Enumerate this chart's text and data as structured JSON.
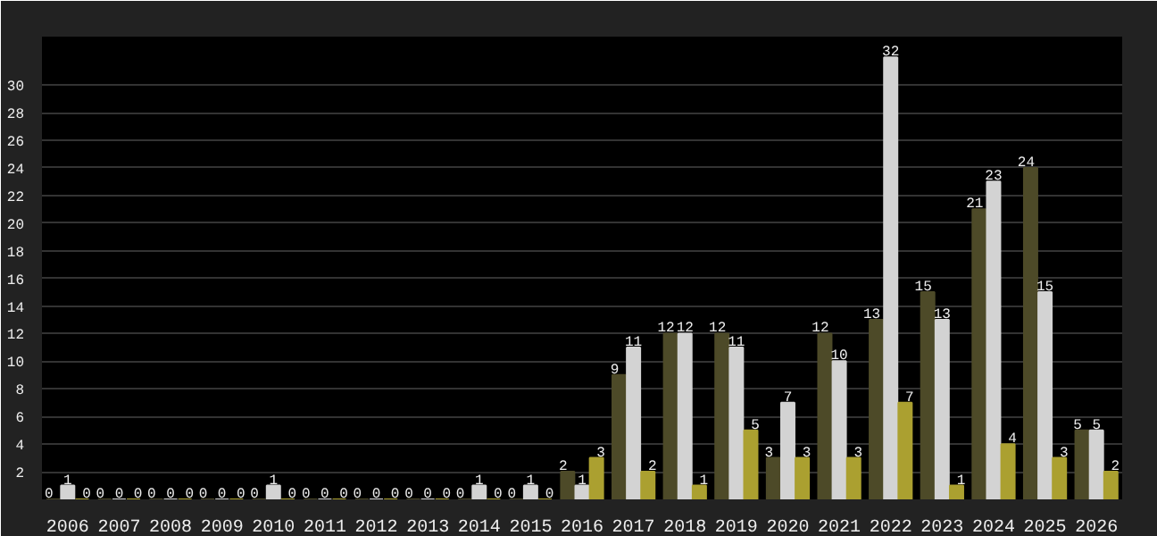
{
  "chart_data": {
    "type": "bar",
    "categories": [
      "2006",
      "2007",
      "2008",
      "2009",
      "2010",
      "2011",
      "2012",
      "2013",
      "2014",
      "2015",
      "2016",
      "2017",
      "2018",
      "2019",
      "2020",
      "2021",
      "2022",
      "2023",
      "2024",
      "2025",
      "2026"
    ],
    "series": [
      {
        "color": "#4d4a28",
        "values": [
          0,
          0,
          0,
          0,
          0,
          0,
          0,
          0,
          0,
          0,
          2,
          9,
          12,
          12,
          3,
          12,
          13,
          15,
          21,
          24,
          5
        ]
      },
      {
        "color": "#d3d3d3",
        "values": [
          1,
          0,
          0,
          0,
          1,
          0,
          0,
          0,
          1,
          1,
          1,
          11,
          12,
          11,
          7,
          10,
          32,
          13,
          23,
          15,
          5
        ]
      },
      {
        "color": "#aba030",
        "values": [
          0,
          0,
          0,
          0,
          0,
          0,
          0,
          0,
          0,
          0,
          3,
          2,
          1,
          5,
          3,
          3,
          7,
          1,
          4,
          3,
          2
        ]
      }
    ],
    "ylim": [
      0,
      33.5
    ],
    "yticks": [
      2,
      4,
      6,
      8,
      10,
      12,
      14,
      16,
      18,
      20,
      22,
      24,
      26,
      28,
      30
    ],
    "grid": "y",
    "data_labels": true
  }
}
